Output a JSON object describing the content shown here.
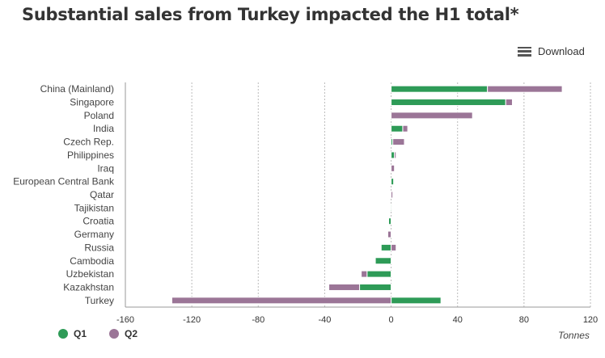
{
  "title": "Substantial sales from Turkey impacted the H1 total*",
  "download_label": "Download",
  "chart_data": {
    "type": "bar",
    "orientation": "horizontal",
    "stacked": true,
    "title": "Substantial sales from Turkey impacted the H1 total*",
    "xlabel": "Tonnes",
    "xlim": [
      -160,
      120
    ],
    "xticks": [
      -160,
      -120,
      -80,
      -40,
      0,
      40,
      80,
      120
    ],
    "grid": true,
    "legend_position": "bottom-left",
    "categories": [
      "China (Mainland)",
      "Singapore",
      "Poland",
      "India",
      "Czech Rep.",
      "Philippines",
      "Iraq",
      "European Central Bank",
      "Qatar",
      "Tajikistan",
      "Croatia",
      "Germany",
      "Russia",
      "Cambodia",
      "Uzbekistan",
      "Kazakhstan",
      "Turkey"
    ],
    "series": [
      {
        "name": "Q1",
        "color": "#2e9b57",
        "values": [
          58,
          69,
          0,
          7,
          1,
          2,
          0,
          1.5,
          0,
          -0.5,
          -1.5,
          0,
          -6,
          -9.5,
          -14.5,
          -19,
          30
        ]
      },
      {
        "name": "Q2",
        "color": "#9b7597",
        "values": [
          45,
          4,
          49,
          3,
          7,
          1,
          2,
          0,
          1,
          0,
          0,
          -2,
          3,
          0,
          -3.5,
          -18.5,
          -132
        ]
      }
    ]
  }
}
